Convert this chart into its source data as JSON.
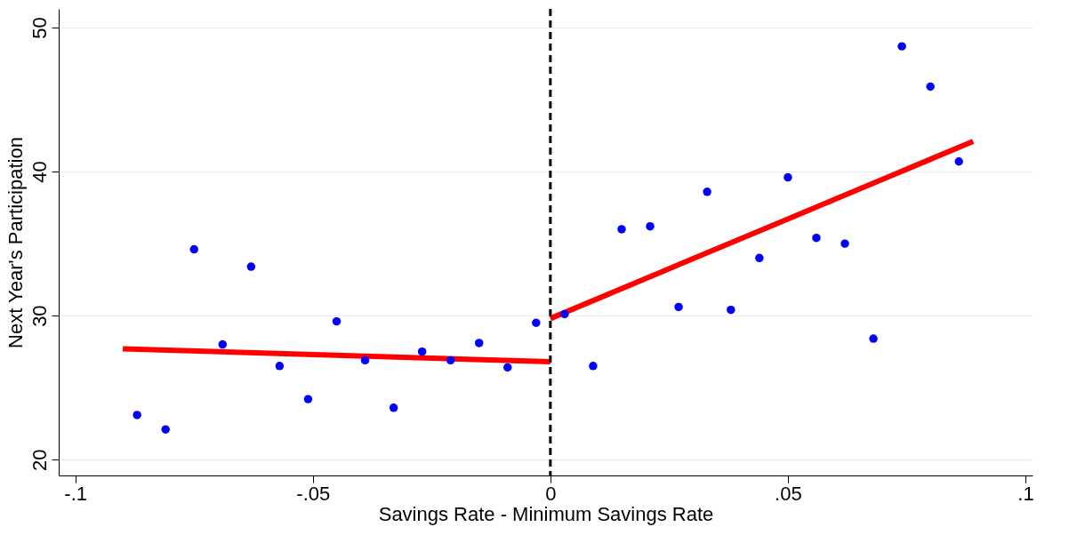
{
  "chart_data": {
    "type": "scatter",
    "xlabel": "Savings Rate - Minimum Savings Rate",
    "ylabel": "Next Year's Participation",
    "xlim": [
      -0.1035,
      0.1015
    ],
    "ylim": [
      18.9,
      51.3
    ],
    "xticks": [
      {
        "value": -0.1,
        "label": "-.1"
      },
      {
        "value": -0.05,
        "label": "-.05"
      },
      0,
      {
        "value": 0.05,
        "label": ".05"
      },
      {
        "value": 0.1,
        "label": ".1"
      }
    ],
    "yticks": [
      20,
      30,
      40,
      50
    ],
    "grid": "y",
    "series": [
      {
        "color": "#0000ff",
        "marker": "circle",
        "x": [
          -0.087,
          -0.081,
          -0.075,
          -0.069,
          -0.063,
          -0.057,
          -0.051,
          -0.045,
          -0.039,
          -0.033,
          -0.027,
          -0.021,
          -0.015,
          -0.009,
          -0.003,
          0.003,
          0.009,
          0.015,
          0.021,
          0.027,
          0.033,
          0.038,
          0.044,
          0.05,
          0.056,
          0.062,
          0.068,
          0.074,
          0.08,
          0.086
        ],
        "values": [
          23.1,
          22.1,
          34.6,
          28.0,
          33.4,
          26.5,
          24.2,
          29.6,
          26.9,
          23.6,
          27.5,
          26.9,
          28.1,
          26.4,
          29.5,
          30.1,
          26.5,
          36.0,
          36.2,
          30.6,
          38.6,
          30.4,
          34.0,
          39.6,
          35.4,
          35.0,
          28.4,
          48.7,
          45.9,
          40.7
        ]
      },
      {
        "type": "line",
        "color": "#ff0000",
        "line_style": "solid",
        "x": [
          -0.09,
          0
        ],
        "values": [
          27.7,
          26.8
        ]
      },
      {
        "type": "line",
        "color": "#ff0000",
        "line_style": "solid",
        "x": [
          0,
          0.089
        ],
        "values": [
          29.8,
          42.1
        ]
      }
    ],
    "ref_lines": [
      {
        "axis": "x",
        "value": 0,
        "label": null,
        "color": "#000000",
        "line_style": "dashed"
      }
    ]
  }
}
